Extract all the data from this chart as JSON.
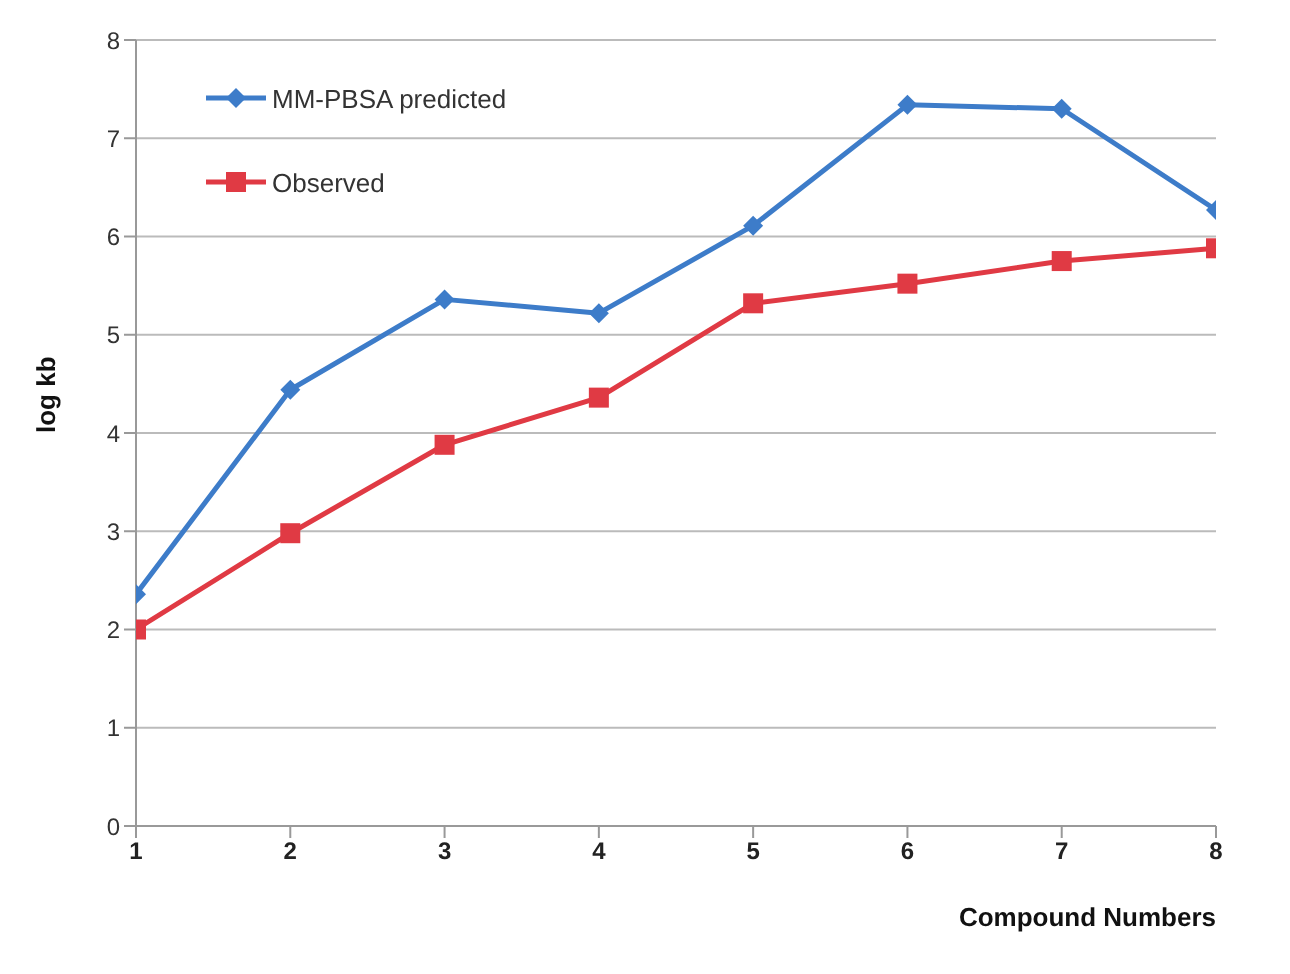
{
  "chart_data": {
    "type": "line",
    "xlabel": "Compound Numbers",
    "ylabel": "log kb",
    "x": [
      1,
      2,
      3,
      4,
      5,
      6,
      7,
      8
    ],
    "xlim": [
      1,
      8
    ],
    "xticks": [
      1,
      2,
      3,
      4,
      5,
      6,
      7,
      8
    ],
    "ylim": [
      0,
      8
    ],
    "yticks": [
      0,
      1,
      2,
      3,
      4,
      5,
      6,
      7,
      8
    ],
    "grid": "y",
    "legend": "top left",
    "series": [
      {
        "name": "MM-PBSA predicted",
        "color": "#3d7cc9",
        "marker": "diamond",
        "values": [
          2.36,
          4.44,
          5.36,
          5.22,
          6.11,
          7.34,
          7.3,
          6.27
        ]
      },
      {
        "name": "Observed",
        "color": "#e03a44",
        "marker": "square",
        "values": [
          2.0,
          2.98,
          3.88,
          4.36,
          5.32,
          5.52,
          5.75,
          5.88
        ]
      }
    ]
  }
}
